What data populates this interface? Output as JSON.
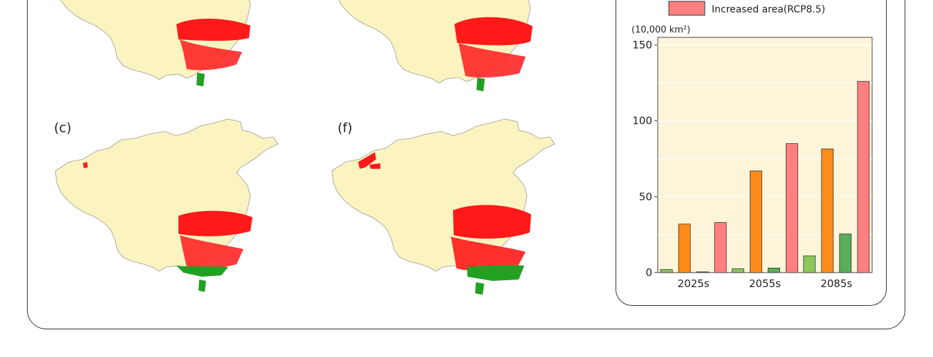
{
  "panels": [
    {
      "label": ""
    },
    {
      "label": ""
    },
    {
      "label": "(c)"
    },
    {
      "label": "(f)"
    }
  ],
  "legend": {
    "increased_rcp85": "Increased area(RCP8.5)"
  },
  "colors": {
    "background": "#fdf5d9",
    "land": "#fbf4c0",
    "increased_red": "#ff1a1a",
    "decreased_green": "#22a022",
    "bar_light_green": "#8cc85a",
    "bar_orange": "#ff8c1a",
    "bar_green": "#5aad5a",
    "bar_pink": "#ff7f80"
  },
  "chart_data": {
    "type": "bar",
    "unit_label": "(10,000 km²)",
    "categories": [
      "2025s",
      "2055s",
      "2085s"
    ],
    "ylim": [
      0,
      155
    ],
    "yticks": [
      0,
      50,
      100,
      150
    ],
    "grid": true,
    "series": [
      {
        "values": [
          2,
          2.5,
          11
        ],
        "color": "#8cc85a"
      },
      {
        "values": [
          32,
          67,
          81.5
        ],
        "color": "#ff8c1a"
      },
      {
        "values": [
          0.5,
          3,
          25.5
        ],
        "color": "#5aad5a"
      },
      {
        "name": "Increased area(RCP8.5)",
        "values": [
          33,
          85,
          126
        ],
        "color": "#ff7f80"
      }
    ]
  }
}
